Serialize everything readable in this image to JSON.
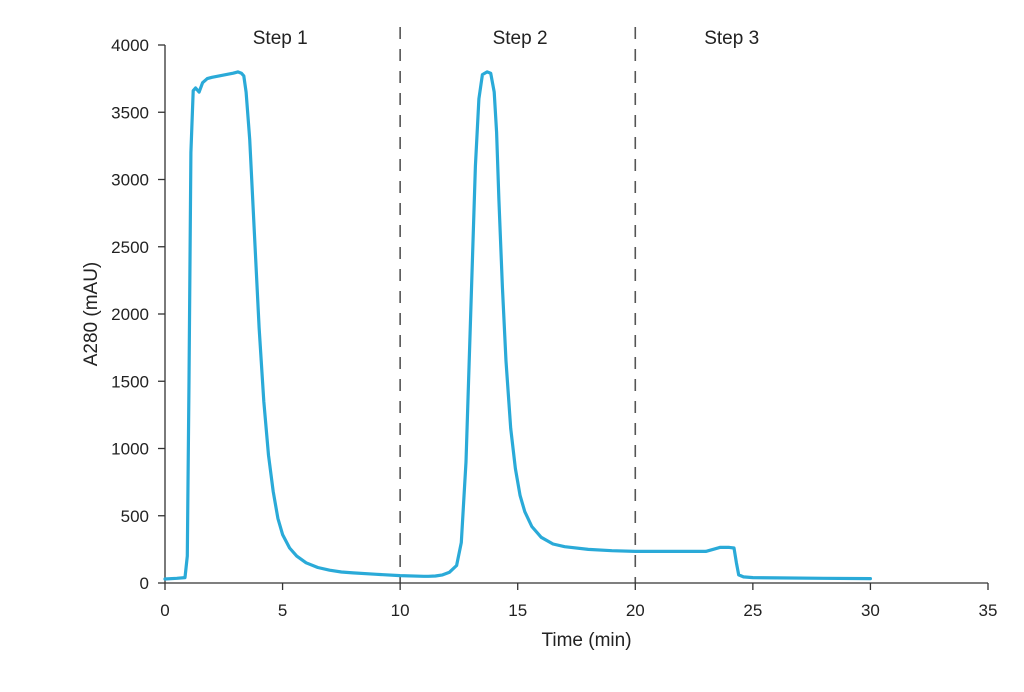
{
  "chart_data": {
    "type": "line",
    "title": "",
    "xlabel": "Time (min)",
    "ylabel": "A280 (mAU)",
    "xlim": [
      0,
      35
    ],
    "ylim": [
      0,
      4000
    ],
    "xticks": [
      0,
      5,
      10,
      15,
      20,
      25,
      30,
      35
    ],
    "yticks": [
      0,
      500,
      1000,
      1500,
      2000,
      2500,
      3000,
      3500,
      4000
    ],
    "grid": false,
    "legend": "none",
    "line_color": "#2aaad8",
    "divider_color": "#555555",
    "dividers": [
      10,
      20
    ],
    "step_labels": [
      {
        "text": "Step 1",
        "x_center": 4.9
      },
      {
        "text": "Step 2",
        "x_center": 15.1
      },
      {
        "text": "Step 3",
        "x_center": 24.1
      }
    ],
    "series": [
      {
        "x": [
          0,
          0.5,
          0.85,
          0.95,
          1.02,
          1.1,
          1.2,
          1.3,
          1.45,
          1.6,
          1.8,
          2.0,
          2.3,
          2.6,
          2.9,
          3.1,
          3.25,
          3.35,
          3.45,
          3.6,
          3.8,
          4.0,
          4.2,
          4.4,
          4.6,
          4.8,
          5.0,
          5.3,
          5.6,
          6.0,
          6.5,
          7.0,
          7.5,
          8.0,
          9.0,
          10.0,
          11.0,
          11.2,
          11.5,
          11.8,
          12.1,
          12.4,
          12.6,
          12.8,
          13.0,
          13.2,
          13.35,
          13.5,
          13.7,
          13.85,
          14.0,
          14.1,
          14.2,
          14.35,
          14.5,
          14.7,
          14.9,
          15.1,
          15.3,
          15.6,
          16.0,
          16.5,
          17.0,
          18.0,
          19.0,
          20.0,
          21.0,
          22.0,
          23.0,
          23.3,
          23.6,
          24.0,
          24.2,
          24.3,
          24.4,
          24.6,
          25.0,
          26.0,
          28.0,
          30.0
        ],
        "y": [
          30,
          35,
          40,
          200,
          1500,
          3200,
          3660,
          3680,
          3650,
          3720,
          3750,
          3760,
          3770,
          3780,
          3790,
          3800,
          3790,
          3770,
          3650,
          3300,
          2600,
          1900,
          1350,
          950,
          680,
          480,
          360,
          260,
          200,
          150,
          115,
          95,
          82,
          75,
          65,
          55,
          50,
          50,
          52,
          60,
          80,
          130,
          300,
          900,
          2000,
          3100,
          3600,
          3780,
          3800,
          3790,
          3650,
          3350,
          2850,
          2200,
          1650,
          1150,
          850,
          650,
          530,
          420,
          340,
          290,
          270,
          250,
          240,
          235,
          235,
          235,
          235,
          250,
          265,
          265,
          260,
          150,
          60,
          45,
          40,
          38,
          35,
          33
        ]
      }
    ]
  }
}
